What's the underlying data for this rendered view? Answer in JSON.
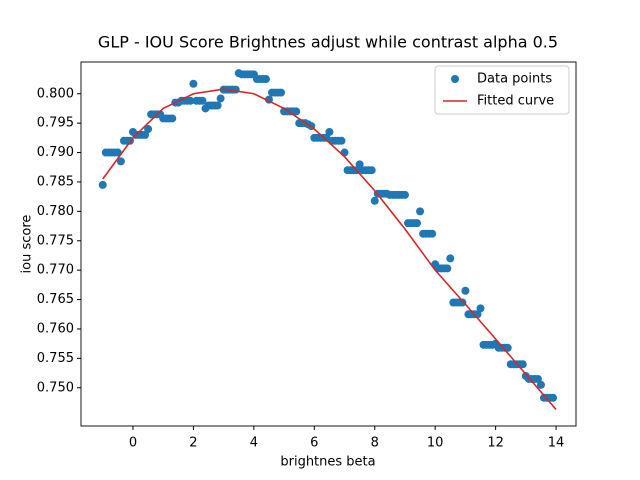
{
  "chart_data": {
    "type": "scatter",
    "title": "GLP - IOU Score Brightnes adjust while contrast alpha 0.5",
    "x_label": "brightnes beta",
    "y_label": "iou score",
    "xlim": [
      -1.72,
      14.66
    ],
    "ylim": [
      0.7435,
      0.8054
    ],
    "xticks": [
      0,
      2,
      4,
      6,
      8,
      10,
      12,
      14
    ],
    "yticks": [
      {
        "value": 0.75,
        "label": "0.750"
      },
      {
        "value": 0.755,
        "label": "0.755"
      },
      {
        "value": 0.76,
        "label": "0.760"
      },
      {
        "value": 0.765,
        "label": "0.765"
      },
      {
        "value": 0.77,
        "label": "0.770"
      },
      {
        "value": 0.775,
        "label": "0.775"
      },
      {
        "value": 0.78,
        "label": "0.780"
      },
      {
        "value": 0.785,
        "label": "0.785"
      },
      {
        "value": 0.79,
        "label": "0.790"
      },
      {
        "value": 0.795,
        "label": "0.795"
      },
      {
        "value": 0.8,
        "label": "0.800"
      }
    ],
    "legend": "upper right",
    "series": [
      {
        "name": "Data points",
        "kind": "scatter",
        "color": "#1f77b4",
        "x": [
          -1.0,
          -0.9,
          -0.8,
          -0.7,
          -0.6,
          -0.5,
          -0.4,
          -0.3,
          -0.2,
          -0.1,
          0.0,
          0.1,
          0.2,
          0.3,
          0.4,
          0.5,
          0.6,
          0.7,
          0.8,
          0.9,
          1.0,
          1.1,
          1.2,
          1.3,
          1.4,
          1.5,
          1.6,
          1.7,
          1.8,
          1.9,
          2.0,
          2.1,
          2.2,
          2.3,
          2.4,
          2.5,
          2.6,
          2.7,
          2.8,
          2.9,
          3.0,
          3.1,
          3.2,
          3.3,
          3.4,
          3.5,
          3.6,
          3.7,
          3.8,
          3.9,
          4.0,
          4.1,
          4.2,
          4.3,
          4.4,
          4.5,
          4.6,
          4.7,
          4.8,
          4.9,
          5.0,
          5.1,
          5.2,
          5.3,
          5.4,
          5.5,
          5.6,
          5.7,
          5.8,
          5.9,
          6.0,
          6.1,
          6.2,
          6.3,
          6.4,
          6.5,
          6.6,
          6.7,
          6.8,
          6.9,
          7.0,
          7.1,
          7.2,
          7.3,
          7.4,
          7.5,
          7.6,
          7.7,
          7.8,
          7.9,
          8.0,
          8.1,
          8.2,
          8.3,
          8.4,
          8.5,
          8.6,
          8.7,
          8.8,
          8.9,
          9.0,
          9.1,
          9.2,
          9.3,
          9.4,
          9.5,
          9.6,
          9.7,
          9.8,
          9.9,
          10.0,
          10.1,
          10.2,
          10.3,
          10.4,
          10.5,
          10.6,
          10.7,
          10.8,
          10.9,
          11.0,
          11.1,
          11.2,
          11.3,
          11.4,
          11.5,
          11.6,
          11.7,
          11.8,
          11.9,
          12.0,
          12.1,
          12.2,
          12.3,
          12.4,
          12.5,
          12.6,
          12.7,
          12.8,
          12.9,
          13.0,
          13.1,
          13.2,
          13.3,
          13.4,
          13.5,
          13.6,
          13.7,
          13.8,
          13.9
        ],
        "values": [
          0.7845,
          0.79,
          0.79,
          0.79,
          0.79,
          0.79,
          0.7885,
          0.792,
          0.792,
          0.792,
          0.7935,
          0.793,
          0.793,
          0.793,
          0.793,
          0.794,
          0.7965,
          0.7965,
          0.7965,
          0.7965,
          0.7958,
          0.7958,
          0.7958,
          0.7958,
          0.7985,
          0.7985,
          0.7988,
          0.7988,
          0.7988,
          0.7988,
          0.8017,
          0.7988,
          0.7988,
          0.7988,
          0.7975,
          0.798,
          0.798,
          0.798,
          0.798,
          0.7992,
          0.8007,
          0.8007,
          0.8007,
          0.8007,
          0.8007,
          0.8035,
          0.8033,
          0.8033,
          0.8033,
          0.8033,
          0.8033,
          0.8025,
          0.8025,
          0.8025,
          0.8025,
          0.799,
          0.8002,
          0.8002,
          0.8002,
          0.8002,
          0.797,
          0.797,
          0.797,
          0.797,
          0.797,
          0.795,
          0.795,
          0.795,
          0.7948,
          0.7945,
          0.7925,
          0.7925,
          0.7925,
          0.7925,
          0.7925,
          0.7935,
          0.792,
          0.792,
          0.792,
          0.792,
          0.79,
          0.787,
          0.787,
          0.787,
          0.787,
          0.788,
          0.787,
          0.787,
          0.787,
          0.787,
          0.7818,
          0.783,
          0.783,
          0.783,
          0.783,
          0.7828,
          0.7828,
          0.7828,
          0.7828,
          0.7828,
          0.7828,
          0.778,
          0.778,
          0.778,
          0.778,
          0.78,
          0.7762,
          0.7762,
          0.7762,
          0.7762,
          0.771,
          0.7703,
          0.7703,
          0.7703,
          0.7703,
          0.772,
          0.7645,
          0.7645,
          0.7645,
          0.7645,
          0.7665,
          0.7625,
          0.7625,
          0.7625,
          0.7625,
          0.7635,
          0.7573,
          0.7573,
          0.7573,
          0.7573,
          0.7575,
          0.7568,
          0.7568,
          0.7568,
          0.7568,
          0.754,
          0.754,
          0.754,
          0.754,
          0.754,
          0.752,
          0.7515,
          0.7515,
          0.7515,
          0.7515,
          0.7505,
          0.7483,
          0.7483,
          0.7483,
          0.7483
        ]
      },
      {
        "name": "Fitted curve",
        "kind": "line",
        "color": "#d62728",
        "x": [
          -1,
          0,
          1,
          2,
          3,
          4,
          5,
          6,
          7,
          8,
          9,
          10,
          11,
          12,
          13,
          14
        ],
        "values": [
          0.7855,
          0.7925,
          0.7975,
          0.8,
          0.8008,
          0.8,
          0.7975,
          0.794,
          0.7893,
          0.7835,
          0.777,
          0.77,
          0.7642,
          0.7583,
          0.7523,
          0.7463
        ]
      }
    ]
  }
}
